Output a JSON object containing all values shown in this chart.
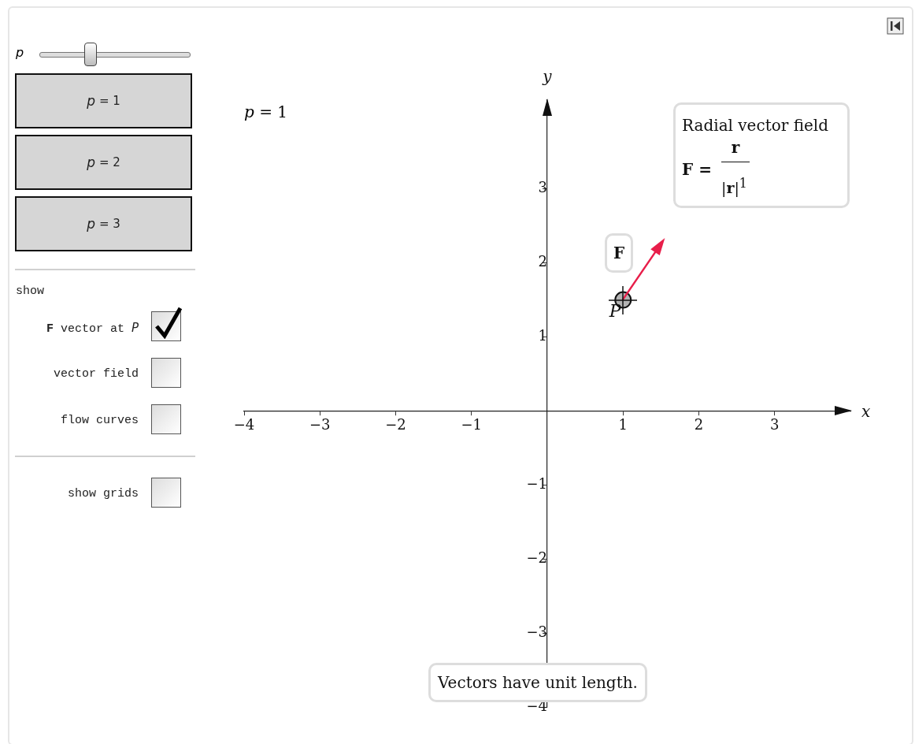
{
  "chart_data": {
    "type": "scatter",
    "xlabel": "x",
    "ylabel": "y",
    "xlim": [
      -4,
      4
    ],
    "ylim": [
      -4,
      4.2
    ],
    "xticks": [
      {
        "value": -4,
        "label": "−4"
      },
      {
        "value": -3,
        "label": "−3"
      },
      {
        "value": -2,
        "label": "−2"
      },
      {
        "value": -1,
        "label": "−1"
      },
      1,
      2,
      3
    ],
    "yticks": [
      {
        "value": -4,
        "label": "−4"
      },
      {
        "value": -3,
        "label": "−3"
      },
      {
        "value": -2,
        "label": "−2"
      },
      {
        "value": -1,
        "label": "−1"
      },
      1,
      2,
      3
    ],
    "legend": false,
    "grid": false,
    "series": [
      {
        "color": "#b3b3b3",
        "marker": "circle",
        "x": [
          1
        ],
        "values": [
          1.5
        ]
      }
    ],
    "annotations": [
      "p",
      "p = 1",
      "p = 2",
      "p = 3",
      "show",
      "F vector at P",
      "vector field",
      "flow curves",
      "show grids",
      "p = 1",
      "Radial vector field",
      "F =",
      "r",
      "|r|$^{1}$",
      "F",
      {
        "text": "P",
        "x": 1,
        "y": 1.5
      },
      "Vectors have unit length."
    ]
  }
}
